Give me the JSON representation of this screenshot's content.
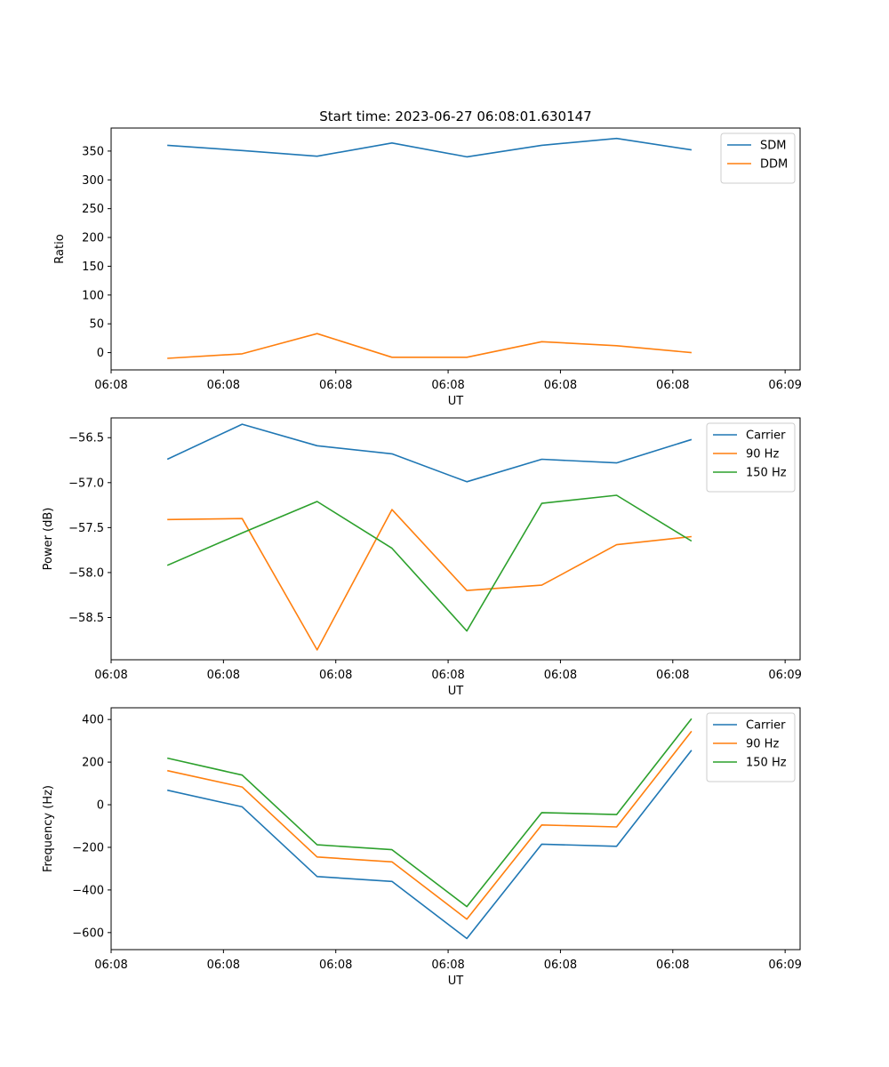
{
  "figure": {
    "title": "Start time: 2023-06-27 06:08:01.630147"
  },
  "chart_data": [
    {
      "type": "line",
      "xlabel": "UT",
      "ylabel": "Ratio",
      "x": [
        0.0,
        1.0,
        2.0,
        3.0,
        4.0,
        5.0,
        6.0,
        7.0
      ],
      "xlim": [
        -0.75,
        8.45
      ],
      "x_ticks": [
        -0.75,
        0.75,
        2.25,
        3.75,
        5.25,
        6.75,
        8.25
      ],
      "x_tick_labels": [
        "06:08",
        "06:08",
        "06:08",
        "06:08",
        "06:08",
        "06:08",
        "06:09"
      ],
      "ylim": [
        -30,
        390
      ],
      "y_ticks": [
        0,
        50,
        100,
        150,
        200,
        250,
        300,
        350
      ],
      "y_tick_labels": [
        "0",
        "50",
        "100",
        "150",
        "200",
        "250",
        "300",
        "350"
      ],
      "legend": "top-right",
      "series": [
        {
          "name": "SDM",
          "color": "#1f77b4",
          "values": [
            360,
            351,
            341,
            364,
            340,
            360,
            372,
            352
          ]
        },
        {
          "name": "DDM",
          "color": "#ff7f0e",
          "values": [
            -10,
            -2,
            33,
            -8,
            -8,
            19,
            12,
            0
          ]
        }
      ]
    },
    {
      "type": "line",
      "xlabel": "UT",
      "ylabel": "Power (dB)",
      "x": [
        0.0,
        1.0,
        2.0,
        3.0,
        4.0,
        5.0,
        6.0,
        7.0
      ],
      "xlim": [
        -0.75,
        8.45
      ],
      "x_ticks": [
        -0.75,
        0.75,
        2.25,
        3.75,
        5.25,
        6.75,
        8.25
      ],
      "x_tick_labels": [
        "06:08",
        "06:08",
        "06:08",
        "06:08",
        "06:08",
        "06:08",
        "06:09"
      ],
      "ylim": [
        -58.97,
        -56.28
      ],
      "y_ticks": [
        -58.5,
        -58.0,
        -57.5,
        -57.0,
        -56.5
      ],
      "y_tick_labels": [
        "−58.5",
        "−58.0",
        "−57.5",
        "−57.0",
        "−56.5"
      ],
      "legend": "top-right",
      "series": [
        {
          "name": "Carrier",
          "color": "#1f77b4",
          "values": [
            -56.74,
            -56.35,
            -56.59,
            -56.68,
            -56.99,
            -56.74,
            -56.78,
            -56.52
          ]
        },
        {
          "name": "90 Hz",
          "color": "#ff7f0e",
          "values": [
            -57.41,
            -57.4,
            -58.86,
            -57.3,
            -58.2,
            -58.14,
            -57.69,
            -57.6
          ]
        },
        {
          "name": "150 Hz",
          "color": "#2ca02c",
          "values": [
            -57.92,
            -57.56,
            -57.21,
            -57.73,
            -58.65,
            -57.23,
            -57.14,
            -57.65
          ]
        }
      ]
    },
    {
      "type": "line",
      "xlabel": "UT",
      "ylabel": "Frequency (Hz)",
      "x": [
        0.0,
        1.0,
        2.0,
        3.0,
        4.0,
        5.0,
        6.0,
        7.0
      ],
      "xlim": [
        -0.75,
        8.45
      ],
      "x_ticks": [
        -0.75,
        0.75,
        2.25,
        3.75,
        5.25,
        6.75,
        8.25
      ],
      "x_tick_labels": [
        "06:08",
        "06:08",
        "06:08",
        "06:08",
        "06:08",
        "06:08",
        "06:09"
      ],
      "ylim": [
        -680,
        455
      ],
      "y_ticks": [
        -600,
        -400,
        -200,
        0,
        200,
        400
      ],
      "y_tick_labels": [
        "−600",
        "−400",
        "−200",
        "0",
        "200",
        "400"
      ],
      "legend": "top-right",
      "series": [
        {
          "name": "Carrier",
          "color": "#1f77b4",
          "values": [
            68,
            -10,
            -337,
            -360,
            -628,
            -185,
            -195,
            256
          ]
        },
        {
          "name": "90 Hz",
          "color": "#ff7f0e",
          "values": [
            160,
            83,
            -245,
            -268,
            -537,
            -95,
            -104,
            345
          ]
        },
        {
          "name": "150 Hz",
          "color": "#2ca02c",
          "values": [
            219,
            139,
            -188,
            -211,
            -478,
            -37,
            -46,
            404
          ]
        }
      ]
    }
  ]
}
